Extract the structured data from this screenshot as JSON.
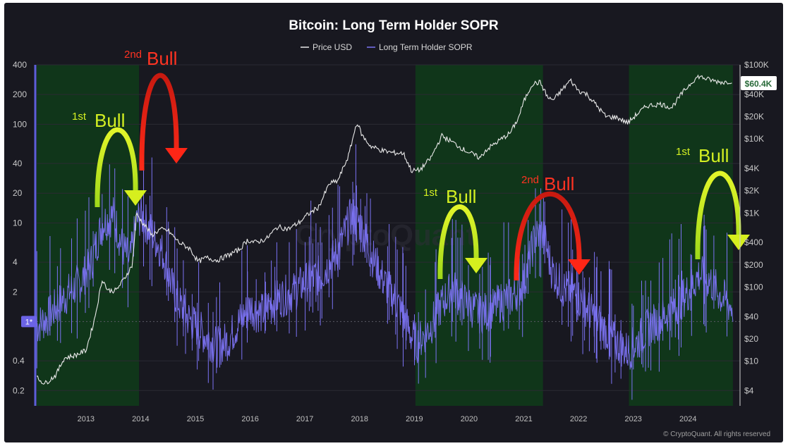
{
  "chart_data": {
    "type": "line",
    "title": "Bitcoin: Long Term Holder SOPR",
    "legend": {
      "placement": "top-center",
      "entries": [
        "Price USD",
        "Long Term Holder SOPR"
      ]
    },
    "x_range": [
      2012.1,
      2024.95
    ],
    "x_ticks": [
      "2013",
      "2014",
      "2015",
      "2016",
      "2017",
      "2018",
      "2019",
      "2020",
      "2021",
      "2022",
      "2023",
      "2024"
    ],
    "y_left": {
      "scale": "log",
      "range": [
        0.14,
        400
      ],
      "ticks": [
        "400",
        "200",
        "100",
        "40",
        "20",
        "10",
        "4",
        "2",
        "0.4",
        "0.2"
      ],
      "reference_line": 1,
      "reference_label": "1*"
    },
    "y_right": {
      "scale": "log",
      "range": [
        2.5,
        100000
      ],
      "ticks": [
        "$100K",
        "$40K",
        "$20K",
        "$10K",
        "$4K",
        "$2K",
        "$1K",
        "$400",
        "$200",
        "$100",
        "$40",
        "$20",
        "$10",
        "$4"
      ]
    },
    "current_price_label": "$60.4K",
    "grid": true,
    "colors": {
      "price": "#e8e8e8",
      "sopr": "#7b72f2",
      "bull_region": "#10361a",
      "up_arrow": "#c8ea1e",
      "down_arrow": "#ff2616",
      "label_green": "#d4f022",
      "label_red": "#ff3322"
    },
    "bull_regions": [
      {
        "start": 2012.1,
        "end": 2013.97
      },
      {
        "start": 2019.02,
        "end": 2021.35
      },
      {
        "start": 2022.92,
        "end": 2024.82
      }
    ],
    "annotations": [
      {
        "ordinal": "1st",
        "word": "Bull",
        "color": "green",
        "x": 2013.1
      },
      {
        "ordinal": "2nd",
        "word": "Bull",
        "color": "red",
        "x": 2013.85
      },
      {
        "ordinal": "1st",
        "word": "Bull",
        "color": "green",
        "x": 2019.85
      },
      {
        "ordinal": "2nd",
        "word": "Bull",
        "color": "red",
        "x": 2021.2
      },
      {
        "ordinal": "1st",
        "word": "Bull",
        "color": "green",
        "x": 2024.3
      }
    ],
    "series": [
      {
        "name": "Price USD",
        "axis": "right",
        "points": [
          [
            2012.1,
            6
          ],
          [
            2012.25,
            5
          ],
          [
            2012.45,
            6.5
          ],
          [
            2012.6,
            11
          ],
          [
            2012.8,
            12
          ],
          [
            2013.0,
            14
          ],
          [
            2013.15,
            35
          ],
          [
            2013.3,
            130
          ],
          [
            2013.4,
            90
          ],
          [
            2013.55,
            90
          ],
          [
            2013.7,
            130
          ],
          [
            2013.85,
            200
          ],
          [
            2013.92,
            1000
          ],
          [
            2014.0,
            800
          ],
          [
            2014.1,
            650
          ],
          [
            2014.2,
            500
          ],
          [
            2014.35,
            600
          ],
          [
            2014.5,
            580
          ],
          [
            2014.7,
            400
          ],
          [
            2014.9,
            330
          ],
          [
            2015.05,
            220
          ],
          [
            2015.2,
            250
          ],
          [
            2015.4,
            230
          ],
          [
            2015.6,
            270
          ],
          [
            2015.8,
            320
          ],
          [
            2015.95,
            430
          ],
          [
            2016.1,
            400
          ],
          [
            2016.3,
            450
          ],
          [
            2016.5,
            650
          ],
          [
            2016.7,
            610
          ],
          [
            2016.9,
            750
          ],
          [
            2017.05,
            950
          ],
          [
            2017.25,
            1200
          ],
          [
            2017.45,
            2500
          ],
          [
            2017.6,
            2700
          ],
          [
            2017.8,
            6000
          ],
          [
            2017.95,
            17000
          ],
          [
            2018.05,
            11000
          ],
          [
            2018.2,
            8000
          ],
          [
            2018.4,
            7000
          ],
          [
            2018.6,
            6500
          ],
          [
            2018.8,
            6400
          ],
          [
            2018.95,
            3700
          ],
          [
            2019.1,
            3800
          ],
          [
            2019.3,
            5500
          ],
          [
            2019.5,
            11000
          ],
          [
            2019.7,
            9000
          ],
          [
            2019.9,
            7200
          ],
          [
            2020.2,
            5500
          ],
          [
            2020.3,
            7000
          ],
          [
            2020.55,
            9500
          ],
          [
            2020.75,
            12000
          ],
          [
            2020.9,
            19000
          ],
          [
            2021.0,
            32000
          ],
          [
            2021.15,
            55000
          ],
          [
            2021.3,
            58000
          ],
          [
            2021.45,
            35000
          ],
          [
            2021.55,
            34000
          ],
          [
            2021.7,
            46000
          ],
          [
            2021.85,
            62000
          ],
          [
            2022.0,
            45000
          ],
          [
            2022.15,
            40000
          ],
          [
            2022.3,
            30000
          ],
          [
            2022.5,
            20000
          ],
          [
            2022.7,
            19500
          ],
          [
            2022.9,
            16500
          ],
          [
            2023.05,
            21000
          ],
          [
            2023.25,
            28000
          ],
          [
            2023.5,
            29500
          ],
          [
            2023.7,
            26500
          ],
          [
            2023.9,
            42000
          ],
          [
            2024.1,
            62000
          ],
          [
            2024.2,
            70000
          ],
          [
            2024.35,
            64000
          ],
          [
            2024.5,
            60000
          ],
          [
            2024.65,
            58000
          ],
          [
            2024.8,
            60400
          ]
        ]
      },
      {
        "name": "Long Term Holder SOPR",
        "axis": "left",
        "points": [
          [
            2012.1,
            0.9
          ],
          [
            2012.3,
            1.1
          ],
          [
            2012.5,
            1.5
          ],
          [
            2012.7,
            2
          ],
          [
            2012.9,
            2.5
          ],
          [
            2013.1,
            4
          ],
          [
            2013.3,
            10
          ],
          [
            2013.5,
            12
          ],
          [
            2013.65,
            6
          ],
          [
            2013.8,
            4
          ],
          [
            2013.92,
            10
          ],
          [
            2014.0,
            12
          ],
          [
            2014.2,
            8
          ],
          [
            2014.4,
            5
          ],
          [
            2014.6,
            2
          ],
          [
            2014.8,
            1.2
          ],
          [
            2015.0,
            0.9
          ],
          [
            2015.2,
            0.7
          ],
          [
            2015.4,
            0.55
          ],
          [
            2015.6,
            0.65
          ],
          [
            2015.8,
            1
          ],
          [
            2016.0,
            1.4
          ],
          [
            2016.2,
            1.2
          ],
          [
            2016.4,
            1.6
          ],
          [
            2016.6,
            1.8
          ],
          [
            2016.8,
            2
          ],
          [
            2017.0,
            2.5
          ],
          [
            2017.3,
            3
          ],
          [
            2017.6,
            5
          ],
          [
            2017.85,
            12
          ],
          [
            2018.0,
            10
          ],
          [
            2018.2,
            5
          ],
          [
            2018.45,
            2.5
          ],
          [
            2018.7,
            1.5
          ],
          [
            2018.95,
            0.7
          ],
          [
            2019.05,
            0.6
          ],
          [
            2019.3,
            0.9
          ],
          [
            2019.5,
            1.5
          ],
          [
            2019.7,
            2.2
          ],
          [
            2019.9,
            1.6
          ],
          [
            2020.2,
            1.2
          ],
          [
            2020.4,
            1.3
          ],
          [
            2020.6,
            1.6
          ],
          [
            2020.8,
            1.8
          ],
          [
            2021.0,
            2.5
          ],
          [
            2021.2,
            7
          ],
          [
            2021.35,
            8
          ],
          [
            2021.5,
            3.5
          ],
          [
            2021.7,
            2.2
          ],
          [
            2021.9,
            2
          ],
          [
            2022.1,
            1.5
          ],
          [
            2022.3,
            1.1
          ],
          [
            2022.5,
            0.8
          ],
          [
            2022.7,
            0.6
          ],
          [
            2022.9,
            0.5
          ],
          [
            2023.05,
            0.6
          ],
          [
            2023.3,
            0.9
          ],
          [
            2023.55,
            1.1
          ],
          [
            2023.8,
            1.5
          ],
          [
            2024.0,
            2
          ],
          [
            2024.2,
            3
          ],
          [
            2024.4,
            2.6
          ],
          [
            2024.6,
            1.8
          ],
          [
            2024.8,
            1.4
          ]
        ]
      }
    ],
    "credit": "© CryptoQuant. All rights reserved",
    "watermark": "CryptoQuant"
  }
}
